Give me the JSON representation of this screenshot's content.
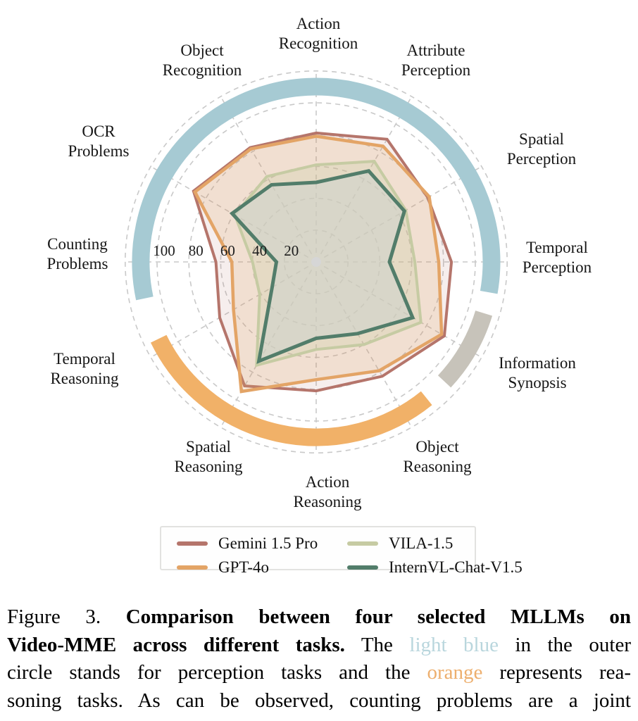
{
  "chart_data": {
    "type": "radar",
    "categories": [
      "Action Recognition",
      "Attribute Perception",
      "Spatial Perception",
      "Temporal Perception",
      "Information Synopsis",
      "Object Reasoning",
      "Action Reasoning",
      "Spatial Reasoning",
      "Temporal Reasoning",
      "Counting Problems",
      "OCR Problems",
      "Object Recognition"
    ],
    "r_ticks": [
      100,
      80,
      60,
      40,
      20
    ],
    "grid_rings": [
      20,
      40,
      60,
      80,
      100,
      120
    ],
    "axis_range": [
      0,
      120
    ],
    "grid": "dashed",
    "legend_position": "bottom",
    "series": [
      {
        "name": "Gemini 1.5 Pro",
        "color": "#b5756b",
        "values": [
          81,
          89,
          81,
          85,
          93,
          83,
          81,
          90,
          70,
          63,
          89,
          83
        ]
      },
      {
        "name": "GPT-4o",
        "color": "#e3a466",
        "values": [
          79,
          84,
          82,
          77,
          91,
          79,
          74,
          94,
          60,
          53,
          88,
          82
        ]
      },
      {
        "name": "VILA-1.5",
        "color": "#c6cba3",
        "values": [
          61,
          73,
          65,
          62,
          76,
          60,
          55,
          75,
          41,
          40,
          59,
          62
        ]
      },
      {
        "name": "InternVL-Chat-V1.5",
        "color": "#527d6a",
        "values": [
          50,
          66,
          64,
          46,
          70,
          52,
          48,
          72,
          32,
          25,
          61,
          56
        ]
      }
    ],
    "outer_ring": {
      "segments": [
        {
          "label": "perception tasks",
          "color": "#a6cad3",
          "start_deg": -102,
          "end_deg": 100
        },
        {
          "label": "information synopsis",
          "color": "#c7c3ba",
          "start_deg": 107,
          "end_deg": 133
        },
        {
          "label": "reasoning tasks",
          "color": "#f1b168",
          "start_deg": 141,
          "end_deg": 244
        }
      ]
    }
  },
  "caption": {
    "colors": {
      "lightblue": "#b9d6dd",
      "orange": "#edaf6e"
    },
    "lines": [
      [
        {
          "text": "Figure 3.",
          "style": "normal"
        },
        {
          "text": "Comparison between four selected MLLMs on",
          "style": "bold"
        }
      ],
      [
        {
          "text": "Video-MME across different tasks.",
          "style": "bold"
        },
        {
          "text": "The",
          "style": "normal"
        },
        {
          "text": "light blue",
          "style": "lightblue"
        },
        {
          "text": "in the outer",
          "style": "normal"
        }
      ],
      [
        {
          "text": "circle stands for perception tasks and the",
          "style": "normal"
        },
        {
          "text": "orange",
          "style": "orange"
        },
        {
          "text": "represents rea-",
          "style": "normal"
        }
      ],
      [
        {
          "text": "soning tasks. As can be observed, counting problems are a joint",
          "style": "normal"
        }
      ]
    ]
  }
}
